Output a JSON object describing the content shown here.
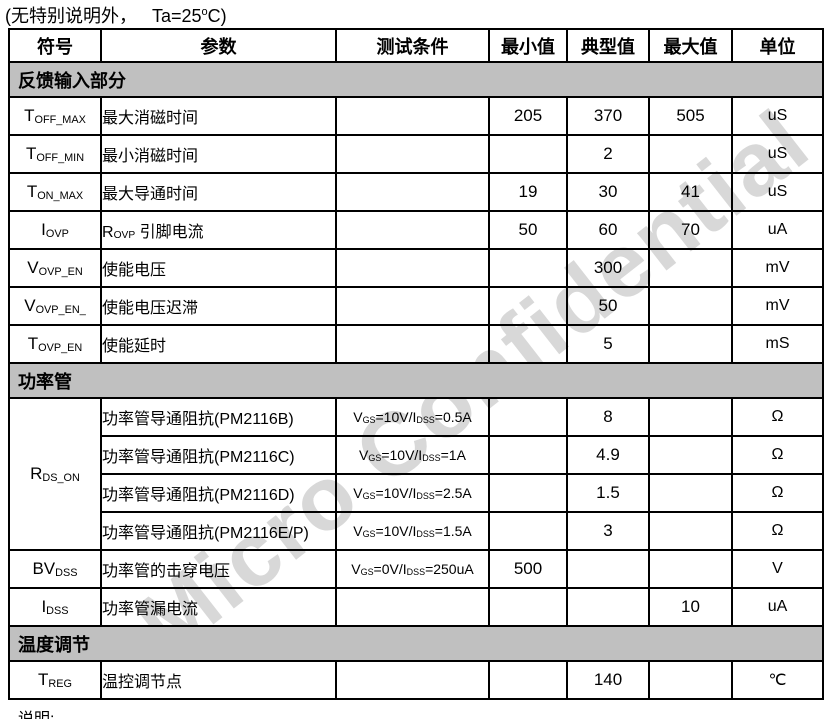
{
  "page": {
    "note_pre": "(无特别说明外，   Ta=25",
    "note_sup": "o",
    "note_post": "C)",
    "footer": "说明:"
  },
  "colors": {
    "section_bg": "#c0c0c0",
    "border": "#000000",
    "watermark": "#d8d8d8"
  },
  "watermark": {
    "text": "Micro Confidential"
  },
  "table": {
    "columns": [
      "符号",
      "参数",
      "测试条件",
      "最小值",
      "典型值",
      "最大值",
      "单位"
    ],
    "sections": [
      {
        "title": "反馈输入部分",
        "rows": [
          {
            "sym": "T~OFF_MAX~",
            "param": "最大消磁时间",
            "cond": "",
            "min": "205",
            "typ": "370",
            "max": "505",
            "unit": "uS"
          },
          {
            "sym": "T~OFF_MIN~",
            "param": "最小消磁时间",
            "cond": "",
            "min": "",
            "typ": "2",
            "max": "",
            "unit": "uS"
          },
          {
            "sym": "T~ON_MAX~",
            "param": "最大导通时间",
            "cond": "",
            "min": "19",
            "typ": "30",
            "max": "41",
            "unit": "uS"
          },
          {
            "sym": "I~OVP~",
            "param": "R~OVP~ 引脚电流",
            "cond": "",
            "min": "50",
            "typ": "60",
            "max": "70",
            "unit": "uA"
          },
          {
            "sym": "V~OVP_EN~",
            "param": "使能电压",
            "cond": "",
            "min": "",
            "typ": "300",
            "max": "",
            "unit": "mV"
          },
          {
            "sym": "V~OVP_EN_~",
            "param": "使能电压迟滞",
            "cond": "",
            "min": "",
            "typ": "50",
            "max": "",
            "unit": "mV"
          },
          {
            "sym": "T~OVP_EN~",
            "param": "使能延时",
            "cond": "",
            "min": "",
            "typ": "5",
            "max": "",
            "unit": "mS"
          }
        ]
      },
      {
        "title": "功率管",
        "rows": [
          {
            "sym": "R~DS_ON~",
            "symRowspan": 4,
            "param": "功率管导通阻抗(PM2116B)",
            "cond": "V~GS~=10V/I~DSS~=0.5A",
            "min": "",
            "typ": "8",
            "max": "",
            "unit": "Ω"
          },
          {
            "param": "功率管导通阻抗(PM2116C)",
            "cond": "V~GS~=10V/I~DSS~=1A",
            "min": "",
            "typ": "4.9",
            "max": "",
            "unit": "Ω"
          },
          {
            "param": "功率管导通阻抗(PM2116D)",
            "cond": "V~GS~=10V/I~DSS~=2.5A",
            "min": "",
            "typ": "1.5",
            "max": "",
            "unit": "Ω"
          },
          {
            "param": "功率管导通阻抗(PM2116E/P)",
            "cond": "V~GS~=10V/I~DSS~=1.5A",
            "min": "",
            "typ": "3",
            "max": "",
            "unit": "Ω"
          },
          {
            "sym": "BV~DSS~",
            "param": "功率管的击穿电压",
            "cond": "V~GS~=0V/I~DSS~=250uA",
            "min": "500",
            "typ": "",
            "max": "",
            "unit": "V"
          },
          {
            "sym": "I~DSS~",
            "param": "功率管漏电流",
            "cond": "",
            "min": "",
            "typ": "",
            "max": "10",
            "unit": "uA"
          }
        ]
      },
      {
        "title": "温度调节",
        "rows": [
          {
            "sym": "T~REG~",
            "param": "温控调节点",
            "cond": "",
            "min": "",
            "typ": "140",
            "max": "",
            "unit": "℃"
          }
        ]
      }
    ]
  }
}
